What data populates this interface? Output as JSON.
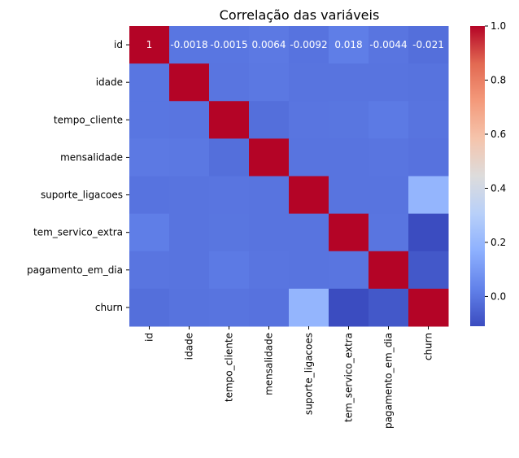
{
  "chart_data": {
    "type": "heatmap",
    "title": "Correlação das variáveis",
    "xlabel": "",
    "ylabel": "",
    "labels": [
      "id",
      "idade",
      "tempo_cliente",
      "mensalidade",
      "suporte_ligacoes",
      "tem_servico_extra",
      "pagamento_em_dia",
      "churn"
    ],
    "matrix": [
      [
        1,
        -0.0018,
        -0.0015,
        0.0064,
        -0.0092,
        0.018,
        -0.0044,
        -0.021
      ],
      [
        -0.0018,
        1,
        -0.005,
        0.003,
        -0.008,
        -0.006,
        -0.007,
        -0.01
      ],
      [
        -0.0015,
        -0.005,
        1,
        -0.02,
        -0.004,
        -0.003,
        0.008,
        -0.006
      ],
      [
        0.0064,
        0.003,
        -0.02,
        1,
        -0.006,
        -0.007,
        -0.004,
        -0.012
      ],
      [
        -0.0092,
        -0.008,
        -0.004,
        -0.006,
        1,
        -0.008,
        -0.006,
        0.19
      ],
      [
        0.018,
        -0.006,
        -0.003,
        -0.007,
        -0.008,
        1,
        -0.004,
        -0.11
      ],
      [
        -0.0044,
        -0.007,
        0.008,
        -0.004,
        -0.006,
        -0.004,
        1,
        -0.08
      ],
      [
        -0.021,
        -0.01,
        -0.006,
        -0.012,
        0.19,
        -0.11,
        -0.08,
        1
      ]
    ],
    "annotations": {
      "row": 0,
      "values": [
        "1",
        "-0.0018",
        "-0.0015",
        "0.0064",
        "-0.0092",
        "0.018",
        "-0.0044",
        "-0.021"
      ]
    },
    "colormap": "coolwarm",
    "vmin": -0.11,
    "vmax": 1,
    "colorbar_ticks": [
      {
        "value": 0.0,
        "label": "0.0"
      },
      {
        "value": 0.2,
        "label": "0.2"
      },
      {
        "value": 0.4,
        "label": "0.4"
      },
      {
        "value": 0.6,
        "label": "0.6"
      },
      {
        "value": 0.8,
        "label": "0.8"
      },
      {
        "value": 1.0,
        "label": "1.0"
      }
    ],
    "colorbar_stops": [
      "#3b4cc0",
      "#6282ea",
      "#8db0fe",
      "#b8d0f9",
      "#dddcdc",
      "#f5c4ac",
      "#f49a7b",
      "#e26952",
      "#b40426"
    ]
  }
}
